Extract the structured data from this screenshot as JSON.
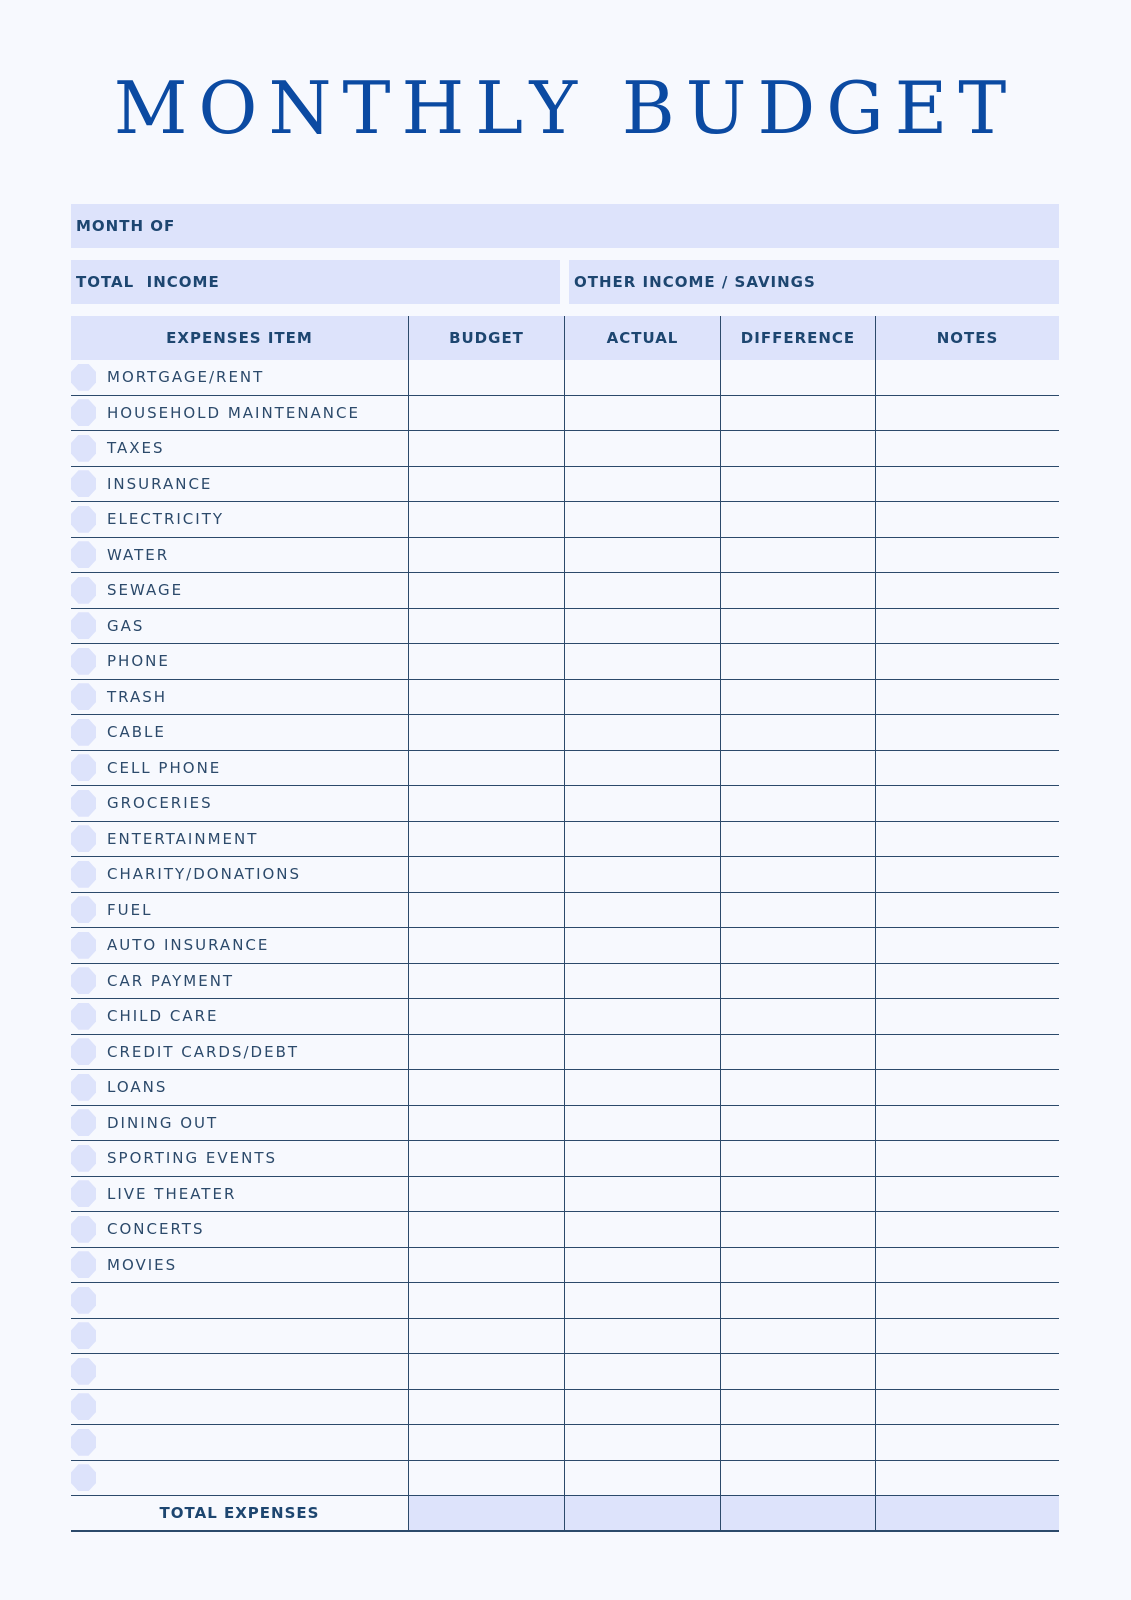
{
  "title": "MONTHLY BUDGET",
  "month_of_label": "MONTH OF",
  "total_income_label": "TOTAL  INCOME",
  "other_income_label": "OTHER INCOME / SAVINGS",
  "columns": [
    "EXPENSES ITEM",
    "BUDGET",
    "ACTUAL",
    "DIFFERENCE",
    "NOTES"
  ],
  "items": [
    "MORTGAGE/RENT",
    "HOUSEHOLD MAINTENANCE",
    "TAXES",
    "INSURANCE",
    "ELECTRICITY",
    "WATER",
    "SEWAGE",
    "GAS",
    "PHONE",
    "TRASH",
    "CABLE",
    "CELL PHONE",
    "GROCERIES",
    "ENTERTAINMENT",
    "CHARITY/DONATIONS",
    "FUEL",
    "AUTO INSURANCE",
    "CAR PAYMENT",
    "CHILD CARE",
    "CREDIT CARDS/DEBT",
    "LOANS",
    "DINING OUT",
    "SPORTING EVENTS",
    "LIVE THEATER",
    "CONCERTS",
    "MOVIES",
    "",
    "",
    "",
    "",
    "",
    ""
  ],
  "total_label": "TOTAL EXPENSES",
  "colors": {
    "title": "#0b4aa2",
    "band": "#dde3fb",
    "text": "#1d4670",
    "lines": "#2c4a6b",
    "background": "#f7f9fe"
  }
}
